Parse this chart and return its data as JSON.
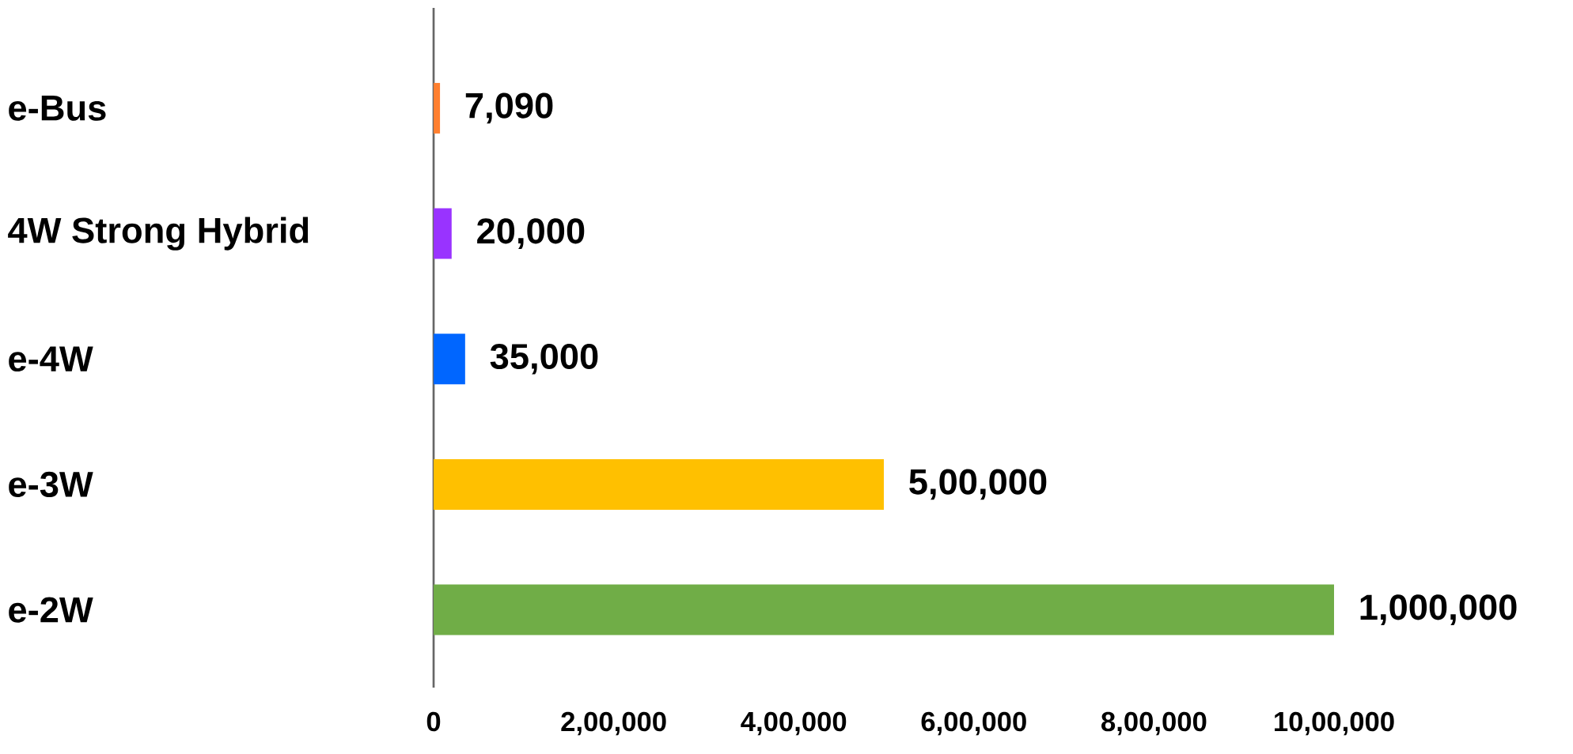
{
  "chart_data": {
    "type": "bar",
    "orientation": "horizontal",
    "categories": [
      "e-Bus",
      "4W Strong Hybrid",
      "e-4W",
      "e-3W",
      "e-2W"
    ],
    "values": [
      7090,
      20000,
      35000,
      500000,
      1000000
    ],
    "colors": [
      "#ff7f2f",
      "#9933ff",
      "#0066ff",
      "#ffc000",
      "#70ad47"
    ],
    "value_labels": [
      "7,090",
      "20,000",
      "35,000",
      "5,00,000",
      "1,000,000"
    ],
    "xlim": [
      0,
      1000000
    ],
    "xticks": [
      0,
      {
        "value": 200000,
        "label": "2,00,000"
      },
      {
        "value": 400000,
        "label": "4,00,000"
      },
      {
        "value": 600000,
        "label": "6,00,000"
      },
      {
        "value": 800000,
        "label": "8,00,000"
      },
      {
        "value": 1000000,
        "label": "10,00,000"
      }
    ]
  }
}
